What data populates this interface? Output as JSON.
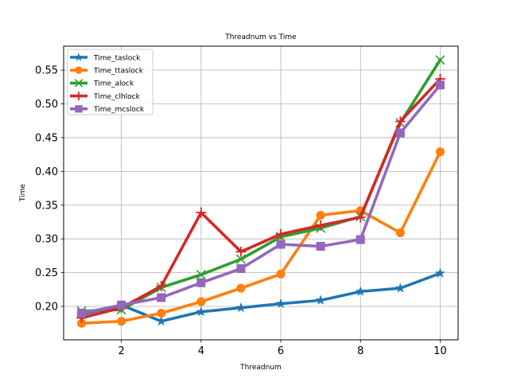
{
  "chart_data": {
    "type": "line",
    "title": "Threadnum vs Time",
    "xlabel": "Threadnum",
    "ylabel": "Time",
    "xlim": [
      0.55,
      10.45
    ],
    "ylim": [
      0.1505,
      0.5855
    ],
    "x": [
      1,
      2,
      3,
      4,
      5,
      6,
      7,
      8,
      9,
      10
    ],
    "xticks": [
      2,
      4,
      6,
      8,
      10
    ],
    "yticks": [
      0.2,
      0.25,
      0.3,
      0.35,
      0.4,
      0.45,
      0.5,
      0.55
    ],
    "ytick_labels": [
      "0.20",
      "0.25",
      "0.30",
      "0.35",
      "0.40",
      "0.45",
      "0.50",
      "0.55"
    ],
    "grid": true,
    "legend_position": "top-left",
    "series": [
      {
        "name": "Time_taslock",
        "color": "#1f77b4",
        "marker": "star",
        "values": [
          0.188,
          0.202,
          0.178,
          0.192,
          0.198,
          0.204,
          0.209,
          0.222,
          0.227,
          0.249
        ]
      },
      {
        "name": "Time_ttaslock",
        "color": "#ff7f0e",
        "marker": "circle",
        "values": [
          0.175,
          0.178,
          0.19,
          0.207,
          0.227,
          0.248,
          0.335,
          0.342,
          0.309,
          0.429
        ]
      },
      {
        "name": "Time_alock",
        "color": "#2ca02c",
        "marker": "x",
        "values": [
          0.193,
          0.195,
          0.228,
          0.247,
          0.27,
          0.303,
          0.316,
          0.333,
          0.472,
          0.565
        ]
      },
      {
        "name": "Time_clhlock",
        "color": "#d62728",
        "marker": "plus",
        "values": [
          0.183,
          0.198,
          0.23,
          0.339,
          0.281,
          0.307,
          0.32,
          0.332,
          0.474,
          0.537
        ]
      },
      {
        "name": "Time_mcslock",
        "color": "#9467bd",
        "marker": "square",
        "values": [
          0.19,
          0.202,
          0.213,
          0.235,
          0.256,
          0.292,
          0.289,
          0.299,
          0.457,
          0.528
        ]
      }
    ]
  }
}
